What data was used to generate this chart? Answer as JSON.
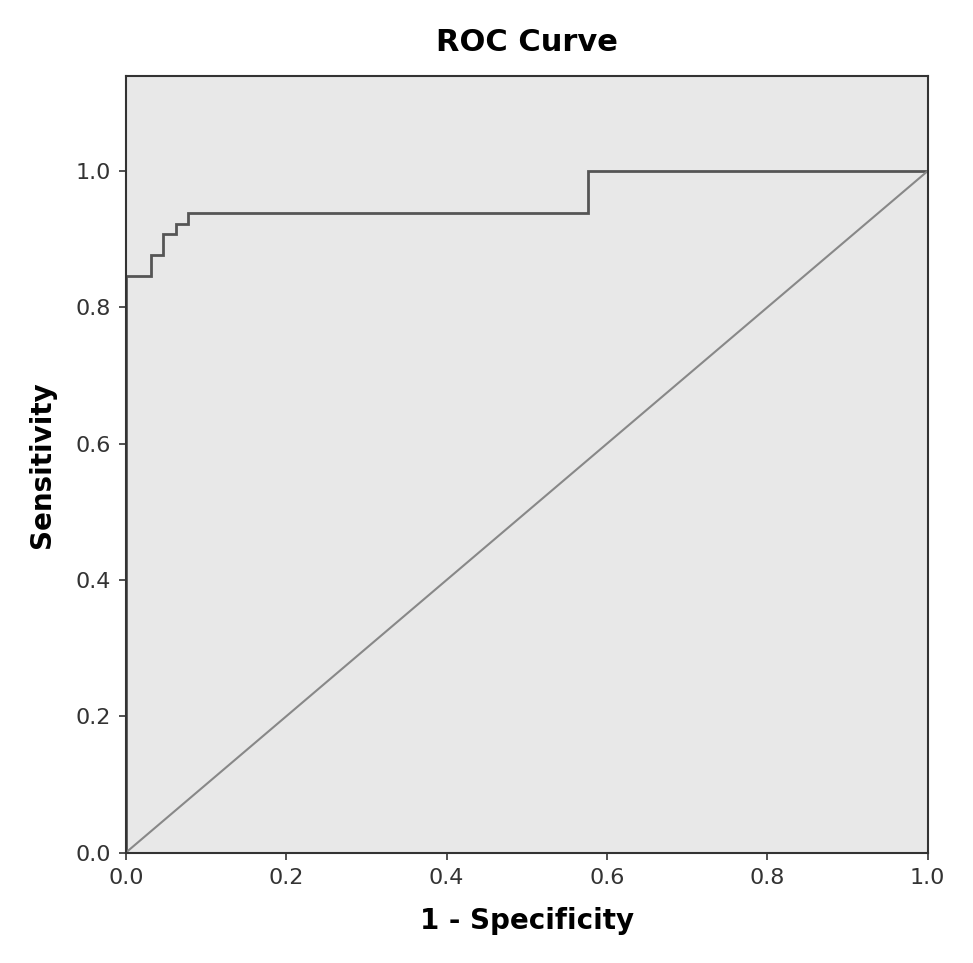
{
  "title": "ROC Curve",
  "xlabel": "1 - Specificity",
  "ylabel": "Sensitivity",
  "title_fontsize": 22,
  "label_fontsize": 20,
  "tick_fontsize": 16,
  "background_color": "#e8e8e8",
  "curve_color": "#555555",
  "diagonal_color": "#888888",
  "curve_linewidth": 2.0,
  "diagonal_linewidth": 1.5,
  "roc_x": [
    0.0,
    0.0,
    0.0,
    0.031,
    0.031,
    0.046,
    0.046,
    0.062,
    0.062,
    0.077,
    0.077,
    0.115,
    0.115,
    0.577,
    0.577,
    0.615,
    0.615,
    1.0
  ],
  "roc_y": [
    0.0,
    0.538,
    0.846,
    0.846,
    0.877,
    0.877,
    0.908,
    0.908,
    0.923,
    0.923,
    0.938,
    0.938,
    0.938,
    0.938,
    1.0,
    1.0,
    1.0,
    1.0
  ],
  "xlim": [
    0.0,
    1.0
  ],
  "ylim": [
    0.0,
    1.14
  ],
  "xticks": [
    0.0,
    0.2,
    0.4,
    0.6,
    0.8,
    1.0
  ],
  "yticks": [
    0.0,
    0.2,
    0.4,
    0.6,
    0.8,
    1.0
  ],
  "figure_bg": "#ffffff",
  "spine_color": "#333333",
  "spine_linewidth": 1.5
}
